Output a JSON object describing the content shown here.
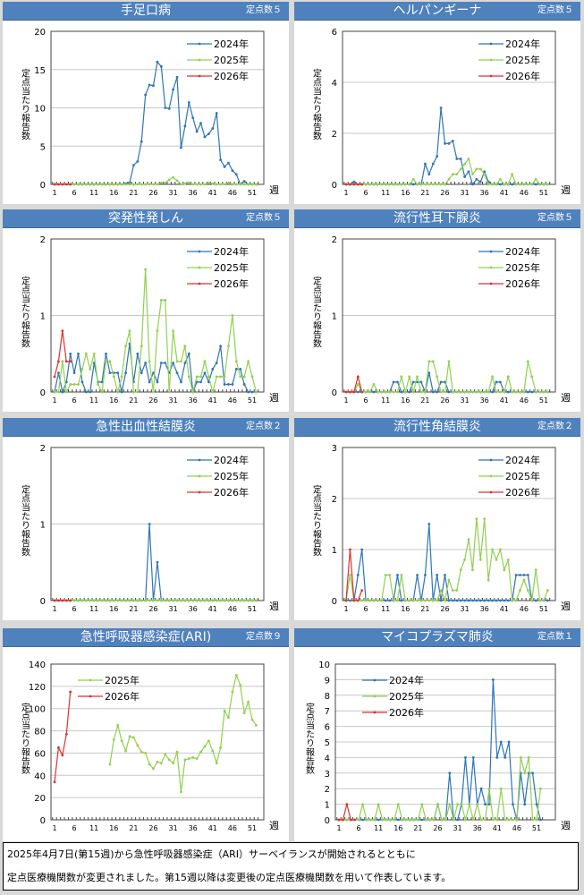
{
  "axis_common": {
    "ylabel": "定点当たり報告数",
    "xlabel": "週",
    "xticks": [
      "1",
      "6",
      "11",
      "16",
      "21",
      "26",
      "31",
      "36",
      "41",
      "46",
      "51"
    ]
  },
  "colors": {
    "2024年": "#2e75b6",
    "2025年": "#92d050",
    "2026年": "#e03030",
    "header": "#4f81bd"
  },
  "chart_data": [
    {
      "type": "line",
      "title": "手足口病",
      "sites": "定点数５",
      "ylim": [
        0,
        20
      ],
      "yticks": [
        "0",
        "5",
        "10",
        "15",
        "20"
      ],
      "legend": "top-right",
      "series": [
        {
          "name": "2024年",
          "values": [
            0,
            0,
            0,
            0,
            0,
            0,
            0,
            0,
            0,
            0,
            0,
            0,
            0,
            0,
            0,
            0,
            0,
            0,
            0.1,
            0.2,
            2.5,
            3.0,
            5.6,
            11.7,
            13.0,
            12.9,
            16.0,
            15.4,
            10.0,
            9.9,
            12.4,
            14.0,
            4.8,
            7.6,
            10.7,
            8.7,
            6.9,
            8.0,
            6.2,
            6.6,
            7.3,
            9.3,
            3.2,
            2.3,
            2.8,
            1.8,
            1.3,
            0,
            0.4,
            0,
            0,
            0
          ]
        },
        {
          "name": "2025年",
          "values": [
            0,
            0,
            0,
            0,
            0,
            0,
            0,
            0,
            0,
            0,
            0,
            0,
            0,
            0,
            0,
            0,
            0,
            0,
            0,
            0,
            0,
            0,
            0,
            0,
            0,
            0,
            0,
            0.2,
            0.2,
            0.6,
            0.9,
            0.5,
            0,
            0.1,
            0.2,
            0,
            0,
            0,
            0,
            0.2,
            0.1,
            0,
            0,
            0,
            0.2,
            0,
            0,
            0,
            0,
            0,
            0,
            0
          ]
        },
        {
          "name": "2026年",
          "values": [
            0,
            0,
            0,
            0,
            0
          ]
        }
      ]
    },
    {
      "type": "line",
      "title": "ヘルパンギーナ",
      "sites": "定点数５",
      "ylim": [
        0,
        6
      ],
      "yticks": [
        "0",
        "2",
        "4",
        "6"
      ],
      "legend": "top-right",
      "series": [
        {
          "name": "2024年",
          "values": [
            0,
            0,
            0.1,
            0,
            0,
            0,
            0,
            0,
            0,
            0,
            0,
            0,
            0,
            0,
            0,
            0,
            0,
            0,
            0,
            0,
            0.8,
            0.4,
            0.8,
            1.1,
            3.0,
            1.6,
            1.6,
            1.7,
            1.0,
            1.0,
            0.3,
            0.5,
            0,
            0.2,
            0.1,
            0.5,
            0.1,
            0,
            0,
            0,
            0,
            0,
            0,
            0,
            0,
            0,
            0,
            0,
            0,
            0,
            0,
            0
          ]
        },
        {
          "name": "2025年",
          "values": [
            0,
            0,
            0,
            0,
            0,
            0,
            0,
            0,
            0,
            0,
            0,
            0,
            0,
            0,
            0,
            0,
            0,
            0.2,
            0,
            0,
            0,
            0,
            0,
            0,
            0,
            0,
            0.2,
            0.4,
            0.4,
            0.6,
            0.8,
            1.0,
            0.4,
            0.6,
            0.6,
            0.4,
            0,
            0,
            0,
            0.2,
            0,
            0,
            0.4,
            0,
            0,
            0,
            0,
            0,
            0.2,
            0,
            0,
            0
          ]
        },
        {
          "name": "2026年",
          "values": [
            0,
            0,
            0,
            0,
            0
          ]
        }
      ]
    },
    {
      "type": "line",
      "title": "突発性発しん",
      "sites": "定点数５",
      "ylim": [
        0,
        2
      ],
      "yticks": [
        "0",
        "1",
        "2"
      ],
      "legend": "top-right",
      "series": [
        {
          "name": "2024年",
          "values": [
            0,
            0.25,
            0,
            0.13,
            0.5,
            0.25,
            0.5,
            0.13,
            0,
            0,
            0.38,
            0.13,
            0.13,
            0.5,
            0.25,
            0.25,
            0.25,
            0,
            0.25,
            0.63,
            0.13,
            0.5,
            0.25,
            0.38,
            0.13,
            0.25,
            0.13,
            0.38,
            0.38,
            0.25,
            0.38,
            0.25,
            0.13,
            0.38,
            0.5,
            0,
            0.13,
            0.13,
            0.25,
            0.13,
            0.3,
            0.38,
            0.6,
            0.1,
            0.1,
            0.1,
            0.3,
            0.3,
            0.1,
            0,
            0,
            0
          ]
        },
        {
          "name": "2025年",
          "values": [
            0,
            0,
            0.4,
            0,
            0.1,
            0.1,
            0.1,
            0.3,
            0.5,
            0.3,
            0.5,
            0.1,
            0,
            0.4,
            0.4,
            0.2,
            0,
            0.2,
            0.6,
            0.8,
            0,
            0,
            0.6,
            1.6,
            0.4,
            0,
            0.8,
            1.2,
            1.2,
            0,
            0.8,
            0.4,
            0.4,
            0.6,
            0.2,
            0,
            0.2,
            0.2,
            0.4,
            0.2,
            0,
            0.2,
            0.2,
            0.2,
            0.6,
            1.0,
            0.4,
            0.2,
            0.2,
            0.4,
            0.2,
            0
          ]
        },
        {
          "name": "2026年",
          "values": [
            0.2,
            0.4,
            0.8,
            0.4,
            0.4
          ]
        }
      ]
    },
    {
      "type": "line",
      "title": "流行性耳下腺炎",
      "sites": "定点数５",
      "ylim": [
        0,
        2
      ],
      "yticks": [
        "0",
        "1",
        "2"
      ],
      "legend": "top-right",
      "series": [
        {
          "name": "2024年",
          "values": [
            0,
            0,
            0,
            0,
            0,
            0,
            0,
            0,
            0,
            0,
            0,
            0,
            0.13,
            0.13,
            0,
            0,
            0,
            0.13,
            0.13,
            0.13,
            0,
            0.25,
            0,
            0,
            0.13,
            0.13,
            0,
            0,
            0,
            0,
            0,
            0,
            0,
            0,
            0,
            0,
            0,
            0,
            0.13,
            0.13,
            0,
            0,
            0,
            0,
            0,
            0,
            0,
            0,
            0,
            0,
            0,
            0
          ]
        },
        {
          "name": "2025年",
          "values": [
            0,
            0,
            0,
            0.1,
            0,
            0,
            0,
            0.1,
            0,
            0,
            0,
            0,
            0,
            0,
            0.2,
            0,
            0.2,
            0,
            0.2,
            0,
            0,
            0.4,
            0.4,
            0.2,
            0,
            0,
            0.4,
            0,
            0,
            0,
            0,
            0,
            0,
            0,
            0,
            0,
            0,
            0.2,
            0,
            0,
            0,
            0.2,
            0,
            0,
            0,
            0,
            0.4,
            0.2,
            0,
            0,
            0,
            0
          ]
        },
        {
          "name": "2026年",
          "values": [
            0,
            0,
            0,
            0.2,
            0
          ]
        }
      ]
    },
    {
      "type": "line",
      "title": "急性出血性結膜炎",
      "sites": "定点数２",
      "ylim": [
        0,
        2
      ],
      "yticks": [
        "0",
        "1",
        "2"
      ],
      "legend": "top-right",
      "series": [
        {
          "name": "2024年",
          "values": [
            0,
            0,
            0,
            0,
            0,
            0,
            0,
            0,
            0,
            0,
            0,
            0,
            0,
            0,
            0,
            0,
            0,
            0,
            0,
            0,
            0,
            0,
            0,
            0,
            1,
            0,
            0.5,
            0,
            0,
            0,
            0,
            0,
            0,
            0,
            0,
            0,
            0,
            0,
            0,
            0,
            0,
            0,
            0,
            0,
            0,
            0,
            0,
            0,
            0,
            0,
            0,
            0
          ]
        },
        {
          "name": "2025年",
          "values": [
            0,
            0,
            0,
            0,
            0,
            0,
            0,
            0,
            0,
            0,
            0,
            0,
            0,
            0,
            0,
            0,
            0,
            0,
            0,
            0,
            0,
            0,
            0,
            0,
            0,
            0,
            0,
            0,
            0,
            0,
            0,
            0,
            0,
            0,
            0,
            0,
            0,
            0,
            0,
            0,
            0,
            0,
            0,
            0,
            0,
            0,
            0,
            0,
            0,
            0,
            0,
            0
          ]
        },
        {
          "name": "2026年",
          "values": [
            0,
            0,
            0,
            0,
            0
          ]
        }
      ]
    },
    {
      "type": "line",
      "title": "流行性角結膜炎",
      "sites": "定点数２",
      "ylim": [
        0,
        3
      ],
      "yticks": [
        "0",
        "1",
        "2",
        "3"
      ],
      "legend": "top-right",
      "series": [
        {
          "name": "2024年",
          "values": [
            0,
            0,
            0,
            0.5,
            1,
            0,
            0,
            0,
            0,
            0,
            0,
            0,
            0,
            0.5,
            0,
            0,
            0,
            0,
            0.5,
            0,
            0.5,
            1.5,
            0,
            0.5,
            0,
            0.5,
            0,
            0,
            0,
            0,
            0,
            0,
            0,
            0,
            0,
            0,
            0,
            0,
            0,
            0,
            0,
            0,
            0,
            0.5,
            0.5,
            0.5,
            0.5,
            0,
            0,
            0,
            0,
            0
          ]
        },
        {
          "name": "2025年",
          "values": [
            0,
            0.5,
            0,
            0,
            0,
            0,
            0,
            0,
            0,
            0,
            0.5,
            0.5,
            0,
            0,
            0.5,
            0,
            0,
            0,
            0,
            0,
            0,
            0,
            0,
            0,
            0.2,
            0,
            0.4,
            0.2,
            0.2,
            0.6,
            0.8,
            1.2,
            0.6,
            1.6,
            0.8,
            1.6,
            0.4,
            1,
            0.8,
            1,
            0.6,
            0.8,
            0,
            0,
            0.2,
            0.4,
            0.2,
            0,
            0.6,
            0,
            0,
            0.2
          ]
        },
        {
          "name": "2026年",
          "values": [
            0,
            1,
            0,
            0,
            0.2
          ]
        }
      ]
    },
    {
      "type": "line",
      "title": "急性呼吸器感染症(ARI)",
      "sites": "定点数９",
      "ylim": [
        0,
        140
      ],
      "yticks": [
        "0",
        "20",
        "40",
        "60",
        "80",
        "100",
        "120",
        "140"
      ],
      "legend": "top-left",
      "series": [
        {
          "name": "2025年",
          "values": [
            null,
            null,
            null,
            null,
            null,
            null,
            null,
            null,
            null,
            null,
            null,
            null,
            null,
            null,
            50,
            72,
            85,
            71,
            62,
            75,
            74,
            67,
            61,
            60,
            50,
            46,
            52,
            51,
            59,
            54,
            51,
            61,
            25,
            54,
            55,
            56,
            55,
            61,
            66,
            71,
            62,
            51,
            65,
            98,
            92,
            115,
            130,
            121,
            96,
            106,
            90,
            85
          ]
        },
        {
          "name": "2026年",
          "values": [
            34,
            65,
            58,
            77,
            115
          ]
        }
      ]
    },
    {
      "type": "line",
      "title": "マイコプラズマ肺炎",
      "sites": "定点数１",
      "ylim": [
        0,
        10
      ],
      "yticks": [
        "0",
        "1",
        "2",
        "3",
        "4",
        "5",
        "6",
        "7",
        "8",
        "9",
        "10"
      ],
      "legend": "top-left",
      "series": [
        {
          "name": "2024年",
          "values": [
            0,
            0,
            0,
            0,
            0,
            0,
            0,
            0,
            0,
            0,
            0,
            0,
            0,
            0,
            0,
            0,
            0,
            0,
            0,
            0,
            0,
            0,
            0,
            0,
            0,
            1,
            0,
            0,
            3,
            0,
            0,
            1,
            4,
            1,
            4,
            1,
            2,
            1,
            1,
            9,
            4,
            5,
            4,
            5,
            1,
            0,
            3,
            1,
            3,
            3,
            1,
            0
          ]
        },
        {
          "name": "2025年",
          "values": [
            0,
            0,
            0,
            0,
            0,
            0,
            1,
            0,
            0,
            0,
            1,
            0,
            0,
            0,
            0,
            1,
            0,
            0,
            0,
            0,
            0,
            1,
            0,
            0,
            0,
            1,
            0,
            0,
            1,
            0,
            1,
            1,
            0,
            1,
            0,
            1,
            0,
            0,
            2,
            0,
            0,
            2,
            0,
            0,
            0,
            0,
            4,
            3,
            4,
            0,
            0,
            2
          ]
        },
        {
          "name": "2026年",
          "values": [
            0,
            0,
            1,
            0,
            0
          ]
        }
      ]
    }
  ],
  "note": {
    "line1": "2025年4月7日(第15週)から急性呼吸器感染症（ARI）サーベイランスが開始されるとともに",
    "line2": "定点医療機関数が変更されました。第15週以降は変更後の定点医療機関数を用いて作表しています。"
  }
}
